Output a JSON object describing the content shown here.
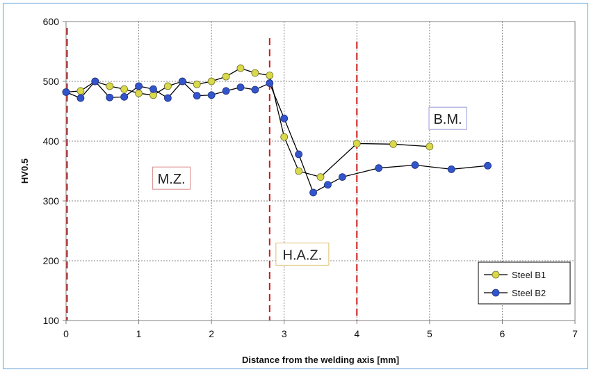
{
  "chart_data": {
    "type": "line",
    "title": "",
    "xlabel": "Distance from the welding axis [mm]",
    "ylabel": "HV0.5",
    "xlim": [
      0,
      7
    ],
    "ylim": [
      100,
      600
    ],
    "x_ticks": [
      "0",
      "1",
      "2",
      "3",
      "4",
      "5",
      "6",
      "7"
    ],
    "y_ticks": [
      "100",
      "200",
      "300",
      "400",
      "500",
      "600"
    ],
    "grid": true,
    "legend_position": "bottom-right",
    "zone_boundaries": [
      0,
      2.8,
      4.0
    ],
    "zone_labels": [
      {
        "text": "M.Z.",
        "x": 1.45,
        "y": 337
      },
      {
        "text": "H.A.Z.",
        "x": 3.25,
        "y": 210
      },
      {
        "text": "B.M.",
        "x": 5.25,
        "y": 437
      }
    ],
    "series": [
      {
        "name": "Steel B1",
        "color": "#d9d94a",
        "marker": "circle",
        "x": [
          0.0,
          0.2,
          0.4,
          0.6,
          0.8,
          1.0,
          1.2,
          1.4,
          1.6,
          1.8,
          2.0,
          2.2,
          2.4,
          2.6,
          2.8,
          3.0,
          3.2,
          3.5,
          4.0,
          4.5,
          5.0
        ],
        "values": [
          482,
          484,
          500,
          492,
          487,
          480,
          477,
          492,
          500,
          495,
          500,
          508,
          522,
          514,
          510,
          407,
          350,
          340,
          396,
          395,
          391
        ]
      },
      {
        "name": "Steel B2",
        "color": "#3355cc",
        "marker": "circle",
        "x": [
          0.0,
          0.2,
          0.4,
          0.6,
          0.8,
          1.0,
          1.2,
          1.4,
          1.6,
          1.8,
          2.0,
          2.2,
          2.4,
          2.6,
          2.8,
          3.0,
          3.2,
          3.4,
          3.6,
          3.8,
          4.3,
          4.8,
          5.3,
          5.8
        ],
        "values": [
          482,
          472,
          500,
          473,
          474,
          492,
          487,
          472,
          500,
          476,
          477,
          484,
          490,
          486,
          497,
          438,
          378,
          314,
          327,
          340,
          355,
          360,
          353,
          359
        ]
      }
    ]
  }
}
